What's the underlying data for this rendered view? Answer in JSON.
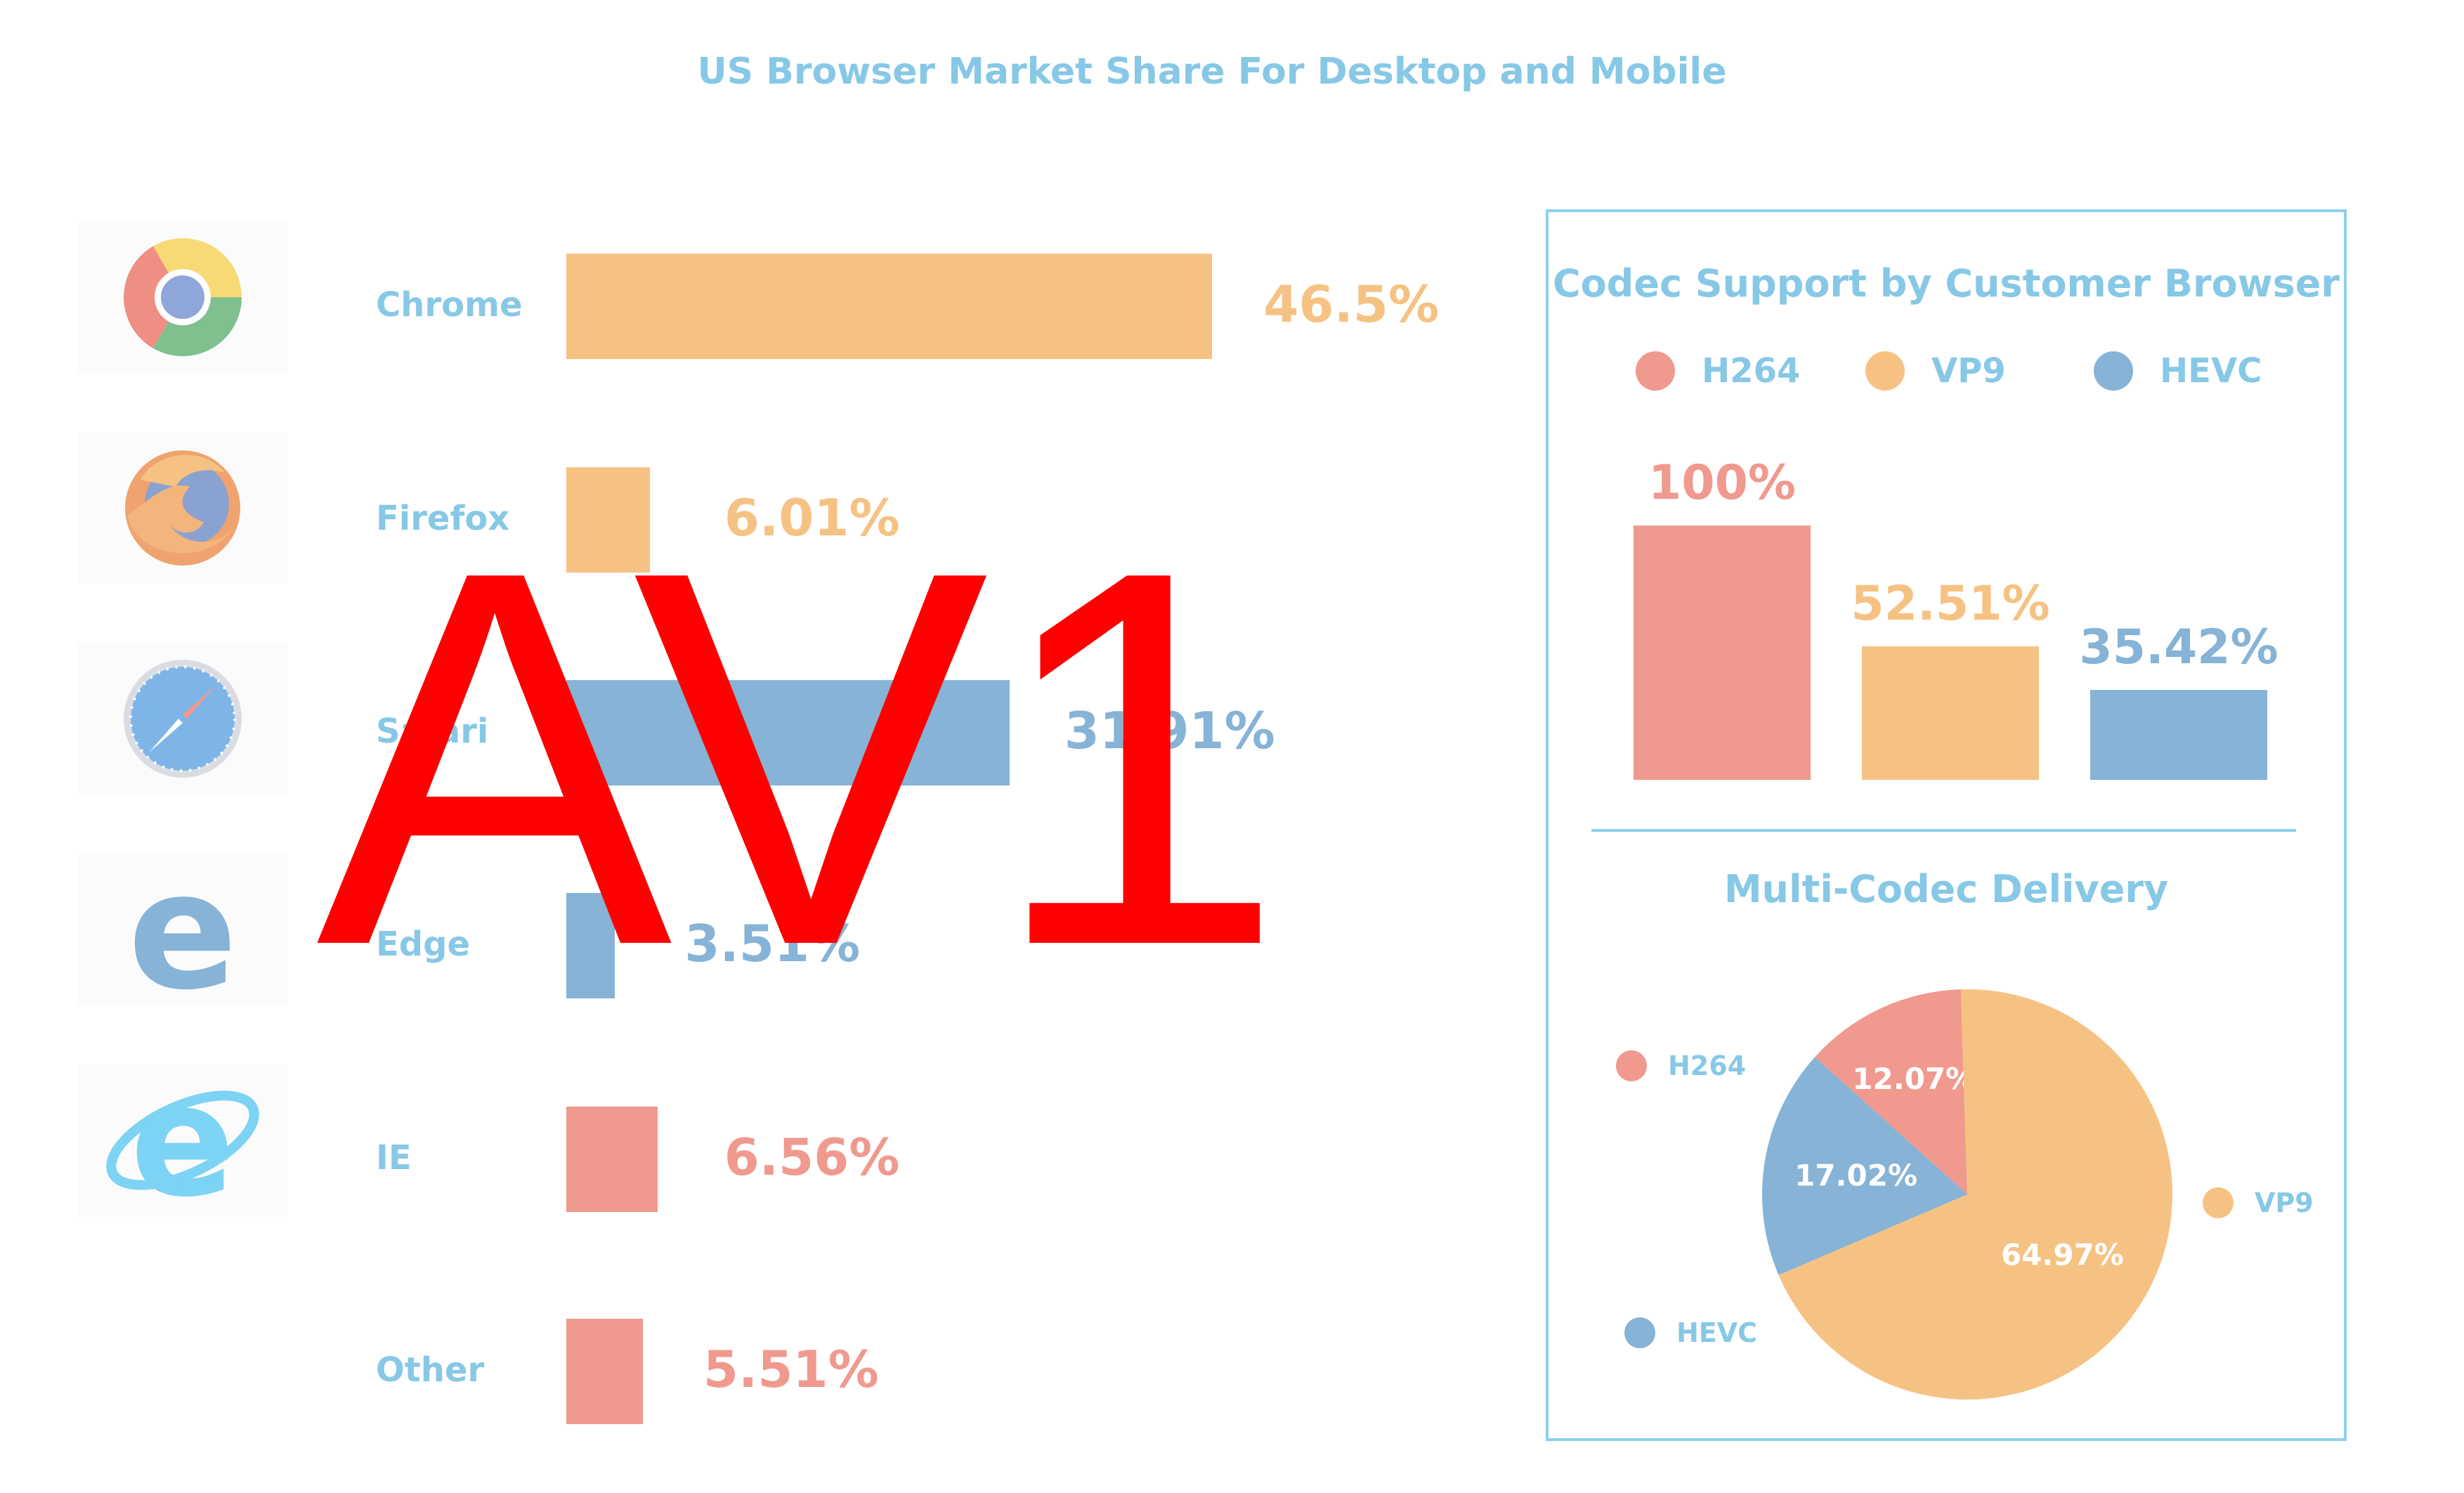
{
  "title": "US Browser Market Share For Desktop and Mobile",
  "watermark": "AV1",
  "colors": {
    "orange": "#f6c283",
    "blue": "#86b3d6",
    "red": "#f0998e",
    "title_blue": "#87c8e6"
  },
  "chart_data": [
    {
      "type": "bar",
      "title": "US Browser Market Share For Desktop and Mobile",
      "orientation": "horizontal",
      "categories": [
        "Chrome",
        "Firefox",
        "Safari",
        "Edge",
        "IE",
        "Other"
      ],
      "values": [
        46.5,
        6.01,
        31.91,
        3.51,
        6.56,
        5.51
      ],
      "value_labels": [
        "46.5%",
        "6.01%",
        "31.91%",
        "3.51%",
        "6.56%",
        "5.51%"
      ],
      "bar_colors": [
        "#f6c283",
        "#f6c283",
        "#86b3d6",
        "#86b3d6",
        "#f0998e",
        "#f0998e"
      ],
      "icons": [
        "chrome-icon",
        "firefox-icon",
        "safari-icon",
        "edge-icon",
        "ie-icon",
        ""
      ]
    },
    {
      "type": "bar",
      "title": "Codec Support by Customer Browser",
      "categories": [
        "H264",
        "VP9",
        "HEVC"
      ],
      "values": [
        100,
        52.51,
        35.42
      ],
      "value_labels": [
        "100%",
        "52.51%",
        "35.42%"
      ],
      "colors": [
        "#f0998e",
        "#f6c283",
        "#86b3d6"
      ],
      "legend": [
        "H264",
        "VP9",
        "HEVC"
      ],
      "legend_position": "top"
    },
    {
      "type": "pie",
      "title": "Multi-Codec Delivery",
      "labels": [
        "H264",
        "VP9",
        "HEVC"
      ],
      "values": [
        12.07,
        64.97,
        17.02
      ],
      "value_labels": [
        "12.07%",
        "64.97%",
        "17.02%"
      ],
      "colors": [
        "#f0998e",
        "#f6c283",
        "#86b3d6"
      ]
    }
  ]
}
